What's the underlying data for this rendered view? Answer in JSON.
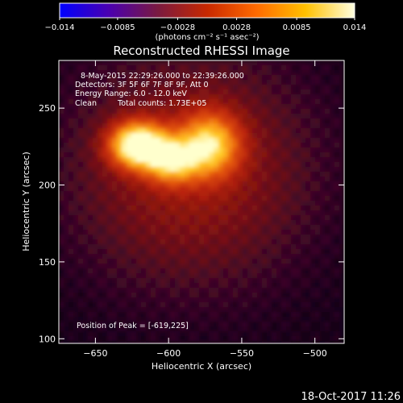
{
  "colorbar": {
    "ticks": [
      {
        "value": -0.014,
        "label": "−0.014"
      },
      {
        "value": -0.0085,
        "label": "−0.0085"
      },
      {
        "value": -0.0028,
        "label": "−0.0028"
      },
      {
        "value": 0.0028,
        "label": "0.0028"
      },
      {
        "value": 0.0085,
        "label": "0.0085"
      },
      {
        "value": 0.014,
        "label": "0.014"
      }
    ],
    "range": [
      -0.014,
      0.014
    ],
    "units_label": "(photons cm⁻² s⁻¹ asec⁻²)",
    "colors": [
      "#0000ff",
      "#4a00b0",
      "#7a1a40",
      "#c82800",
      "#ff6a00",
      "#ffc000",
      "#ffffe0"
    ]
  },
  "chart_data": {
    "type": "heatmap",
    "title": "Reconstructed RHESSI Image",
    "xlabel": "Heliocentric X (arcsec)",
    "ylabel": "Heliocentric Y (arcsec)",
    "xlim": [
      -675,
      -480
    ],
    "ylim": [
      97,
      281
    ],
    "x_ticks": [
      -650,
      -600,
      -550,
      -500
    ],
    "y_ticks": [
      100,
      150,
      200,
      250
    ],
    "x_tick_labels": [
      "−650",
      "−600",
      "−550",
      "−500"
    ],
    "y_tick_labels": [
      "100",
      "150",
      "200",
      "250"
    ],
    "sources": [
      {
        "x": -621,
        "y": 226,
        "sigma_x": 13,
        "sigma_y": 10,
        "peak": 1.0
      },
      {
        "x": -572,
        "y": 226,
        "sigma_x": 14,
        "sigma_y": 14,
        "peak": 0.7
      },
      {
        "x": -598,
        "y": 216,
        "sigma_x": 12,
        "sigma_y": 10,
        "peak": 0.65
      },
      {
        "x": -585,
        "y": 210,
        "sigma_x": 60,
        "sigma_y": 55,
        "peak": 0.3
      }
    ],
    "peak_position": [
      -619,
      225
    ]
  },
  "annotations": {
    "time_range": "8-May-2015 22:29:26.000 to 22:39:26.000",
    "detectors": "Detectors: 3F 5F 6F 7F 8F 9F, Att 0",
    "energy_range": "Energy Range: 6.0 - 12.0 keV",
    "clean_label": "Clean",
    "total_counts": "Total counts: 1.73E+05",
    "peak_text": "Position of Peak = [-619,225]"
  },
  "footer": {
    "timestamp": "18-Oct-2017 11:26"
  }
}
